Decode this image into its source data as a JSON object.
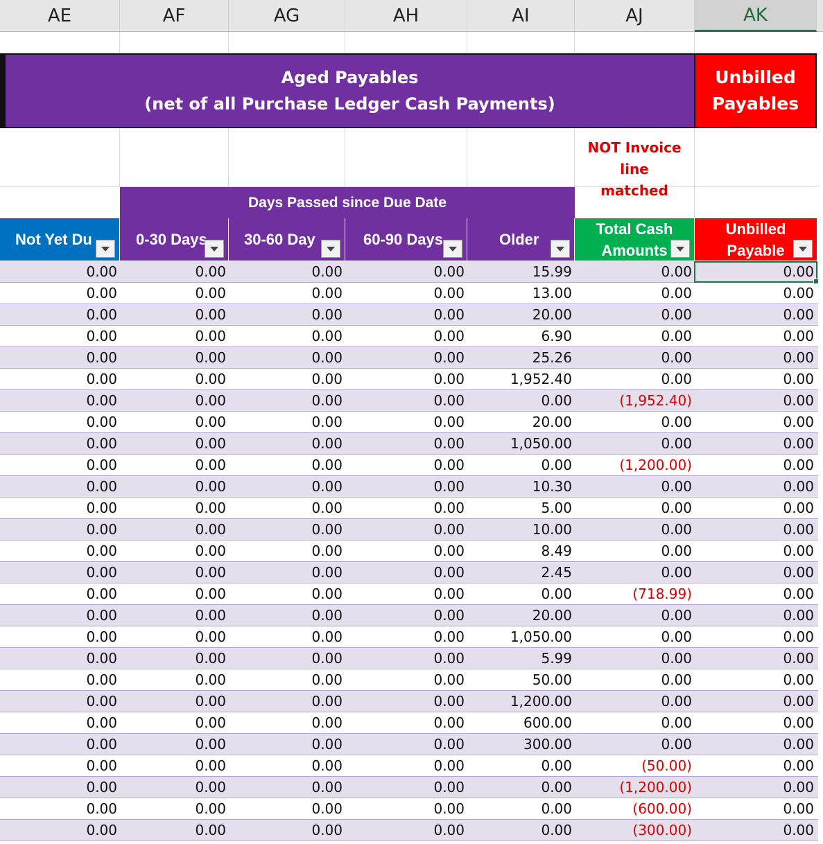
{
  "columns": [
    "AE",
    "AF",
    "AG",
    "AH",
    "AI",
    "AJ",
    "AK"
  ],
  "selected_column": "AK",
  "banner": {
    "title_line1": "Aged Payables",
    "title_line2": "(net of all Purchase Ledger Cash Payments)",
    "unbilled_line1": "Unbilled",
    "unbilled_line2": "Payables"
  },
  "note": {
    "line1": "NOT Invoice line",
    "line2": "matched"
  },
  "days_passed_header": "Days Passed since Due Date",
  "headers": {
    "not_yet_due": "Not Yet Du",
    "d0_30": "0-30 Days",
    "d30_60": "30-60 Day",
    "d60_90": "60-90 Days",
    "older": "Older",
    "total_cash_1": "Total Cash",
    "total_cash_2": "Amounts",
    "unbilled_1": "Unbilled",
    "unbilled_2": "Payable"
  },
  "colors": {
    "purple": "#7030a0",
    "blue": "#0070c0",
    "green": "#00b050",
    "red": "#ff0000",
    "band": "#e4dfec",
    "negative_text": "#e00000"
  },
  "rows": [
    [
      "0.00",
      "0.00",
      "0.00",
      "0.00",
      "15.99",
      "0.00",
      "0.00"
    ],
    [
      "0.00",
      "0.00",
      "0.00",
      "0.00",
      "13.00",
      "0.00",
      "0.00"
    ],
    [
      "0.00",
      "0.00",
      "0.00",
      "0.00",
      "20.00",
      "0.00",
      "0.00"
    ],
    [
      "0.00",
      "0.00",
      "0.00",
      "0.00",
      "6.90",
      "0.00",
      "0.00"
    ],
    [
      "0.00",
      "0.00",
      "0.00",
      "0.00",
      "25.26",
      "0.00",
      "0.00"
    ],
    [
      "0.00",
      "0.00",
      "0.00",
      "0.00",
      "1,952.40",
      "0.00",
      "0.00"
    ],
    [
      "0.00",
      "0.00",
      "0.00",
      "0.00",
      "0.00",
      "(1,952.40)",
      "0.00"
    ],
    [
      "0.00",
      "0.00",
      "0.00",
      "0.00",
      "20.00",
      "0.00",
      "0.00"
    ],
    [
      "0.00",
      "0.00",
      "0.00",
      "0.00",
      "1,050.00",
      "0.00",
      "0.00"
    ],
    [
      "0.00",
      "0.00",
      "0.00",
      "0.00",
      "0.00",
      "(1,200.00)",
      "0.00"
    ],
    [
      "0.00",
      "0.00",
      "0.00",
      "0.00",
      "10.30",
      "0.00",
      "0.00"
    ],
    [
      "0.00",
      "0.00",
      "0.00",
      "0.00",
      "5.00",
      "0.00",
      "0.00"
    ],
    [
      "0.00",
      "0.00",
      "0.00",
      "0.00",
      "10.00",
      "0.00",
      "0.00"
    ],
    [
      "0.00",
      "0.00",
      "0.00",
      "0.00",
      "8.49",
      "0.00",
      "0.00"
    ],
    [
      "0.00",
      "0.00",
      "0.00",
      "0.00",
      "2.45",
      "0.00",
      "0.00"
    ],
    [
      "0.00",
      "0.00",
      "0.00",
      "0.00",
      "0.00",
      "(718.99)",
      "0.00"
    ],
    [
      "0.00",
      "0.00",
      "0.00",
      "0.00",
      "20.00",
      "0.00",
      "0.00"
    ],
    [
      "0.00",
      "0.00",
      "0.00",
      "0.00",
      "1,050.00",
      "0.00",
      "0.00"
    ],
    [
      "0.00",
      "0.00",
      "0.00",
      "0.00",
      "5.99",
      "0.00",
      "0.00"
    ],
    [
      "0.00",
      "0.00",
      "0.00",
      "0.00",
      "50.00",
      "0.00",
      "0.00"
    ],
    [
      "0.00",
      "0.00",
      "0.00",
      "0.00",
      "1,200.00",
      "0.00",
      "0.00"
    ],
    [
      "0.00",
      "0.00",
      "0.00",
      "0.00",
      "600.00",
      "0.00",
      "0.00"
    ],
    [
      "0.00",
      "0.00",
      "0.00",
      "0.00",
      "300.00",
      "0.00",
      "0.00"
    ],
    [
      "0.00",
      "0.00",
      "0.00",
      "0.00",
      "0.00",
      "(50.00)",
      "0.00"
    ],
    [
      "0.00",
      "0.00",
      "0.00",
      "0.00",
      "0.00",
      "(1,200.00)",
      "0.00"
    ],
    [
      "0.00",
      "0.00",
      "0.00",
      "0.00",
      "0.00",
      "(600.00)",
      "0.00"
    ],
    [
      "0.00",
      "0.00",
      "0.00",
      "0.00",
      "0.00",
      "(300.00)",
      "0.00"
    ]
  ]
}
